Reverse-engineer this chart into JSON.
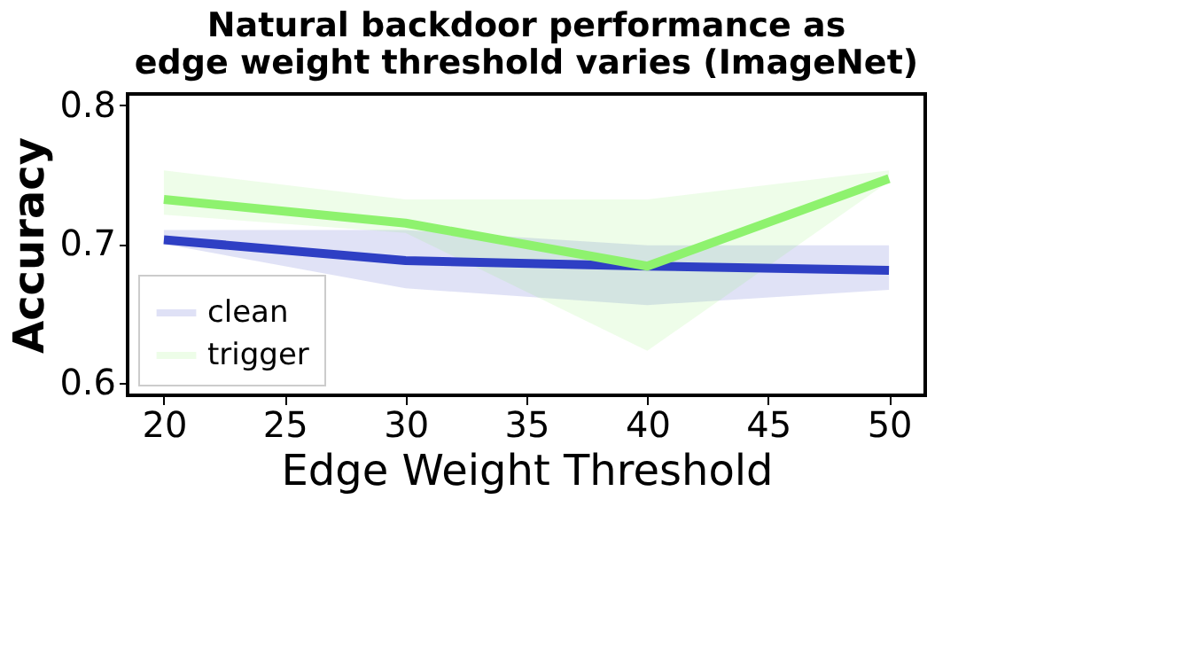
{
  "chart_data": {
    "type": "line",
    "title": "Natural backdoor performance as\nedge weight threshold varies (ImageNet)",
    "xlabel": "Edge Weight Threshold",
    "ylabel": "Accuracy",
    "x": [
      20,
      30,
      40,
      50
    ],
    "series": [
      {
        "name": "clean",
        "color": "#2e3fc4",
        "values": [
          0.703,
          0.688,
          0.684,
          0.681
        ],
        "lower": [
          0.7,
          0.668,
          0.656,
          0.667
        ],
        "upper": [
          0.71,
          0.71,
          0.699,
          0.699
        ]
      },
      {
        "name": "trigger",
        "color": "#8ef26e",
        "values": [
          0.732,
          0.715,
          0.684,
          0.747
        ],
        "lower": [
          0.721,
          0.708,
          0.623,
          0.745
        ],
        "upper": [
          0.753,
          0.732,
          0.732,
          0.753
        ]
      }
    ],
    "xlim": [
      18.5,
      51.5
    ],
    "xticks": [
      20,
      25,
      30,
      35,
      40,
      45,
      50
    ],
    "ylim": [
      0.591,
      0.808
    ],
    "yticks": [
      0.6,
      0.7,
      0.8
    ],
    "grid": false,
    "legend": "bottom left",
    "line_style": "solid",
    "marker": "none"
  }
}
